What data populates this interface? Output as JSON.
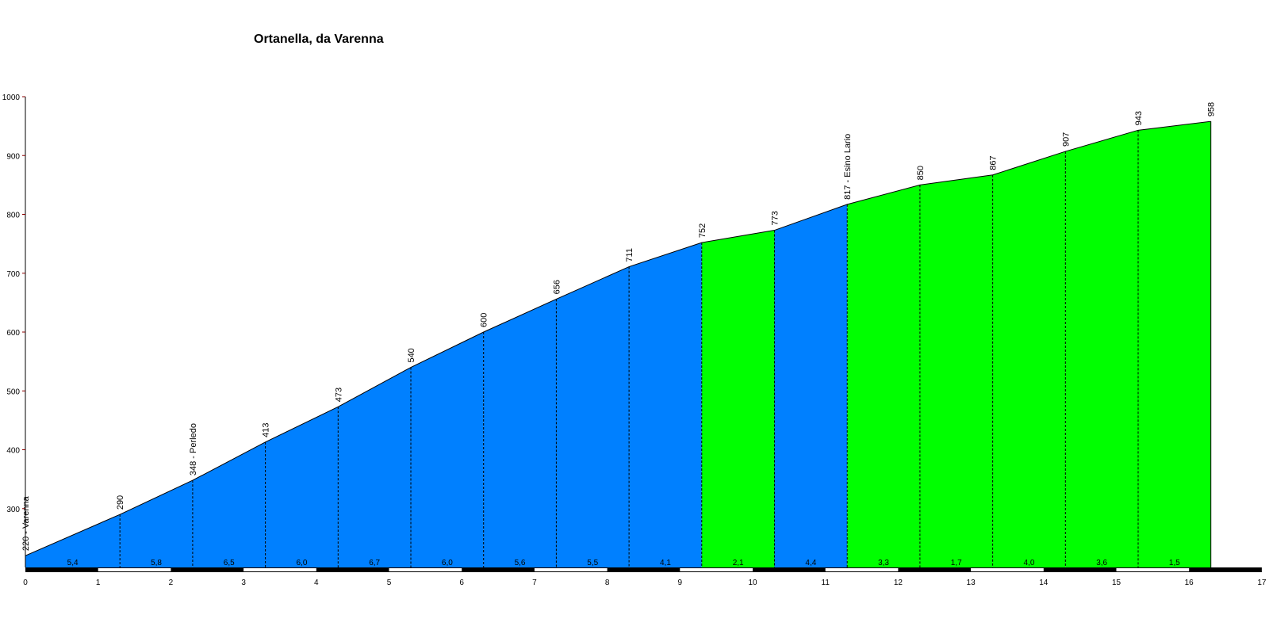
{
  "title": "Ortanella, da Varenna",
  "chart_data": {
    "type": "area",
    "title": "Ortanella, da Varenna",
    "xlabel": "",
    "ylabel": "",
    "xlim": [
      0,
      17
    ],
    "ylim": [
      200,
      1000
    ],
    "x_ticks": [
      0,
      1,
      2,
      3,
      4,
      5,
      6,
      7,
      8,
      9,
      10,
      11,
      12,
      13,
      14,
      15,
      16,
      17
    ],
    "y_ticks": [
      300,
      400,
      500,
      600,
      700,
      800,
      900,
      1000
    ],
    "grid": false,
    "points": [
      {
        "x": 0,
        "y": 220,
        "label": "220 - Varenna"
      },
      {
        "x": 1.3,
        "y": 290,
        "label": "290"
      },
      {
        "x": 2.3,
        "y": 348,
        "label": "348 - Perledo"
      },
      {
        "x": 3.3,
        "y": 413,
        "label": "413"
      },
      {
        "x": 4.3,
        "y": 473,
        "label": "473"
      },
      {
        "x": 5.3,
        "y": 540,
        "label": "540"
      },
      {
        "x": 6.3,
        "y": 600,
        "label": "600"
      },
      {
        "x": 7.3,
        "y": 656,
        "label": "656"
      },
      {
        "x": 8.3,
        "y": 711,
        "label": "711"
      },
      {
        "x": 9.3,
        "y": 752,
        "label": "752"
      },
      {
        "x": 10.3,
        "y": 773,
        "label": "773"
      },
      {
        "x": 11.3,
        "y": 817,
        "label": "817 - Esino Lario"
      },
      {
        "x": 12.3,
        "y": 850,
        "label": "850"
      },
      {
        "x": 13.3,
        "y": 867,
        "label": "867"
      },
      {
        "x": 14.3,
        "y": 907,
        "label": "907"
      },
      {
        "x": 15.3,
        "y": 943,
        "label": "943"
      },
      {
        "x": 16.3,
        "y": 958,
        "label": "958"
      }
    ],
    "segments": [
      {
        "grade": "5,4",
        "surface": "blue"
      },
      {
        "grade": "5,8",
        "surface": "blue"
      },
      {
        "grade": "6,5",
        "surface": "blue"
      },
      {
        "grade": "6,0",
        "surface": "blue"
      },
      {
        "grade": "6,7",
        "surface": "blue"
      },
      {
        "grade": "6,0",
        "surface": "blue"
      },
      {
        "grade": "5,6",
        "surface": "blue"
      },
      {
        "grade": "5,5",
        "surface": "blue"
      },
      {
        "grade": "4,1",
        "surface": "blue"
      },
      {
        "grade": "2,1",
        "surface": "green"
      },
      {
        "grade": "4,4",
        "surface": "blue"
      },
      {
        "grade": "3,3",
        "surface": "green"
      },
      {
        "grade": "1,7",
        "surface": "green"
      },
      {
        "grade": "4,0",
        "surface": "green"
      },
      {
        "grade": "3,6",
        "surface": "green"
      },
      {
        "grade": "1,5",
        "surface": "green"
      }
    ],
    "colors": {
      "blue": "#0080ff",
      "green": "#00ff00",
      "axis_tick": "#8b0000"
    }
  }
}
